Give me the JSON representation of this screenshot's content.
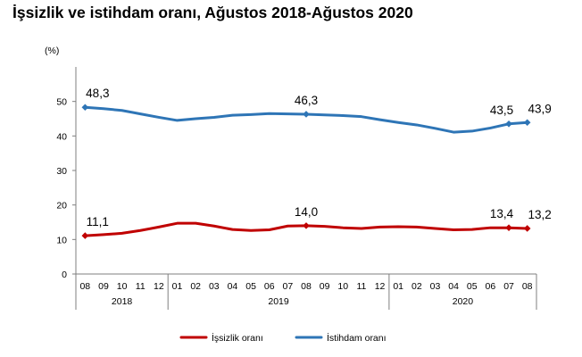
{
  "chart_data": {
    "type": "line",
    "title": "İşsizlik ve istihdam oranı, Ağustos 2018-Ağustos 2020",
    "unit_label": "(%)",
    "ylim": [
      0,
      60
    ],
    "yticks": [
      "0",
      "10",
      "20",
      "30",
      "40",
      "50"
    ],
    "grid": false,
    "legend_position": "bottom",
    "categories": [
      "08",
      "09",
      "10",
      "11",
      "12",
      "01",
      "02",
      "03",
      "04",
      "05",
      "06",
      "07",
      "08",
      "09",
      "10",
      "11",
      "12",
      "01",
      "02",
      "03",
      "04",
      "05",
      "06",
      "07",
      "08"
    ],
    "year_groups": [
      {
        "label": "2018",
        "start": 0,
        "end": 4
      },
      {
        "label": "2019",
        "start": 5,
        "end": 16
      },
      {
        "label": "2020",
        "start": 17,
        "end": 24
      }
    ],
    "series": [
      {
        "name": "İşsizlik oranı",
        "color": "#C00000",
        "values": [
          11.1,
          11.4,
          11.8,
          12.6,
          13.6,
          14.7,
          14.7,
          13.9,
          12.9,
          12.6,
          12.8,
          13.9,
          14.0,
          13.8,
          13.4,
          13.2,
          13.6,
          13.7,
          13.6,
          13.2,
          12.8,
          12.9,
          13.4,
          13.4,
          13.2
        ],
        "labels": [
          {
            "index": 0,
            "text": "11,1"
          },
          {
            "index": 12,
            "text": "14,0"
          },
          {
            "index": 23,
            "text": "13,4"
          },
          {
            "index": 24,
            "text": "13,2"
          }
        ]
      },
      {
        "name": "İstihdam oranı",
        "color": "#2E75B6",
        "values": [
          48.3,
          47.9,
          47.4,
          46.4,
          45.4,
          44.5,
          45.0,
          45.4,
          46.0,
          46.2,
          46.5,
          46.4,
          46.3,
          46.1,
          45.9,
          45.6,
          44.7,
          43.9,
          43.2,
          42.2,
          41.1,
          41.4,
          42.3,
          43.5,
          43.9
        ],
        "labels": [
          {
            "index": 0,
            "text": "48,3"
          },
          {
            "index": 12,
            "text": "46,3"
          },
          {
            "index": 23,
            "text": "43,5"
          },
          {
            "index": 24,
            "text": "43,9"
          }
        ]
      }
    ]
  }
}
